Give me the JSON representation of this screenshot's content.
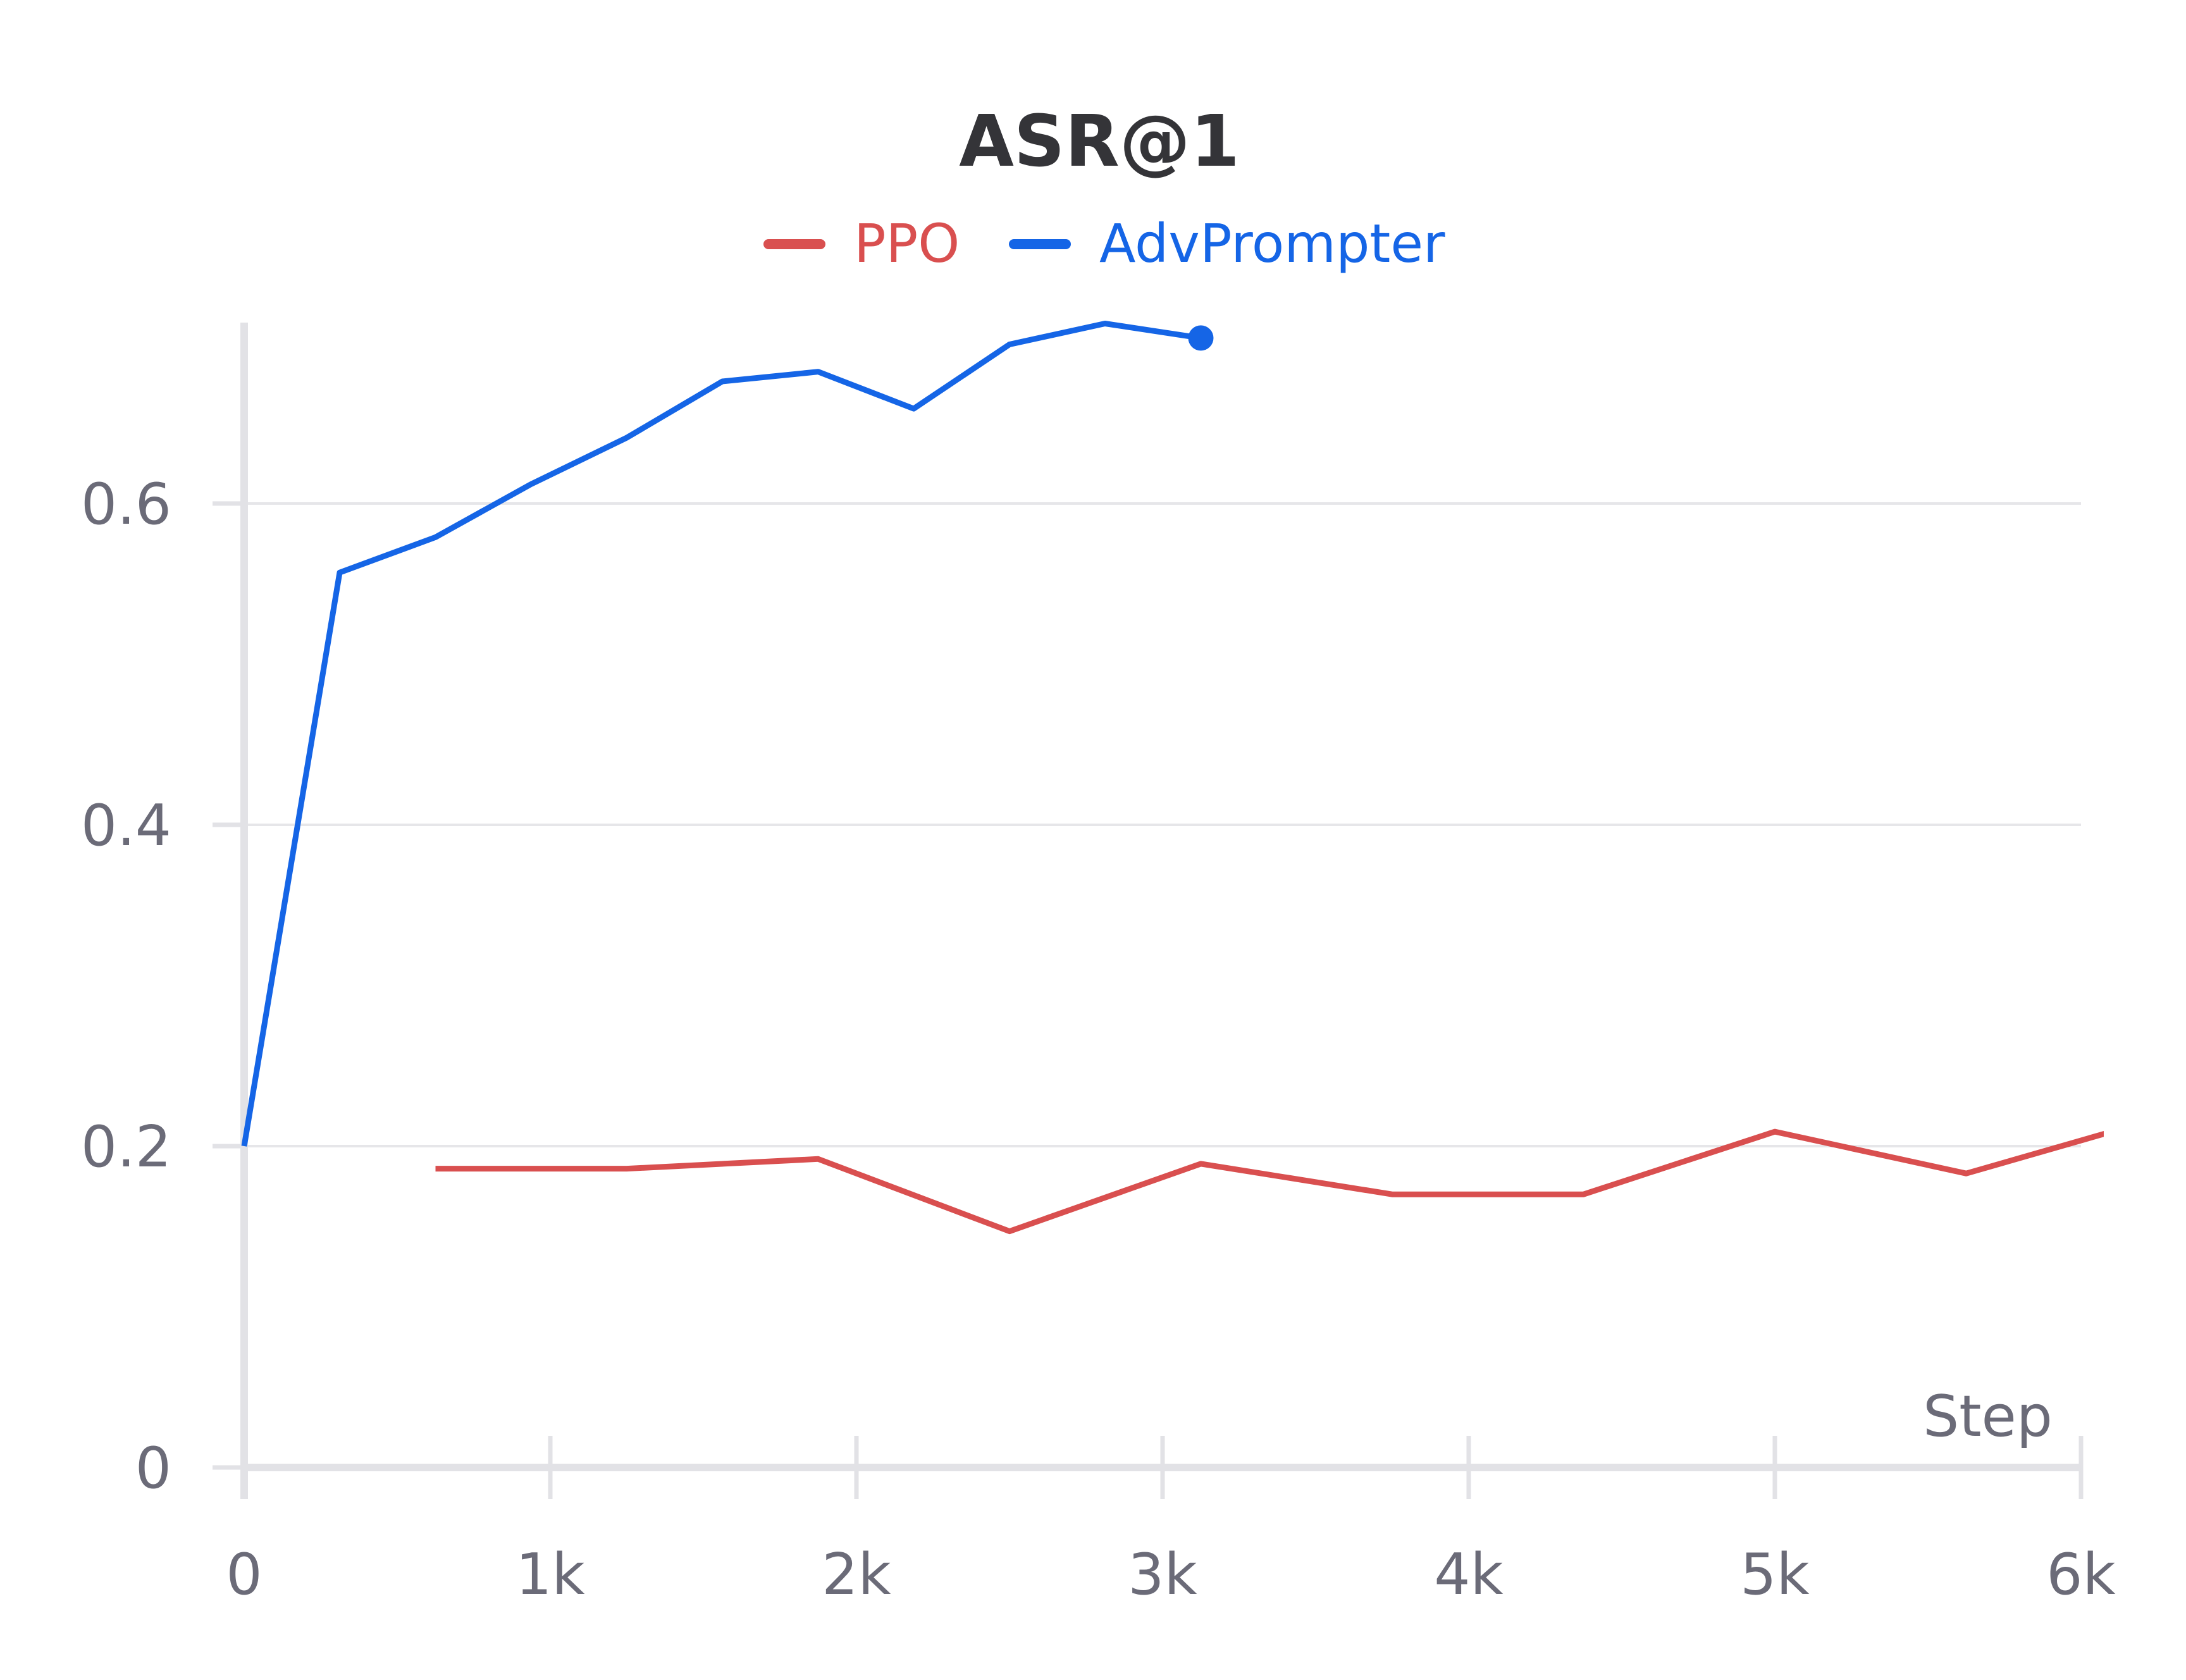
{
  "chart_data": {
    "type": "line",
    "title": "ASR@1",
    "xlabel": "Step",
    "ylabel": "",
    "xlim": [
      0,
      6000
    ],
    "ylim": [
      0,
      0.7
    ],
    "x_ticks": [
      {
        "value": 0,
        "label": "0"
      },
      {
        "value": 1000,
        "label": "1k"
      },
      {
        "value": 2000,
        "label": "2k"
      },
      {
        "value": 3000,
        "label": "3k"
      },
      {
        "value": 4000,
        "label": "4k"
      },
      {
        "value": 5000,
        "label": "5k"
      },
      {
        "value": 6000,
        "label": "6k"
      }
    ],
    "y_ticks": [
      {
        "value": 0,
        "label": "0"
      },
      {
        "value": 0.2,
        "label": "0.2"
      },
      {
        "value": 0.4,
        "label": "0.4"
      },
      {
        "value": 0.6,
        "label": "0.6"
      }
    ],
    "grid": true,
    "legend_position": "top-center",
    "series": [
      {
        "name": "PPO",
        "color": "#d94f4f",
        "end_marker": false,
        "x": [
          625,
          1250,
          1875,
          2500,
          3125,
          3750,
          4375,
          5000,
          5625,
          6100
        ],
        "y": [
          0.186,
          0.186,
          0.192,
          0.147,
          0.189,
          0.17,
          0.17,
          0.209,
          0.183,
          0.209
        ]
      },
      {
        "name": "AdvPrompter",
        "color": "#1565e6",
        "end_marker": true,
        "x": [
          0,
          312,
          625,
          937,
          1250,
          1562,
          1875,
          2187,
          2500,
          2812,
          3125
        ],
        "y": [
          0.2,
          0.557,
          0.579,
          0.612,
          0.641,
          0.676,
          0.682,
          0.659,
          0.699,
          0.712,
          0.703
        ]
      }
    ]
  }
}
